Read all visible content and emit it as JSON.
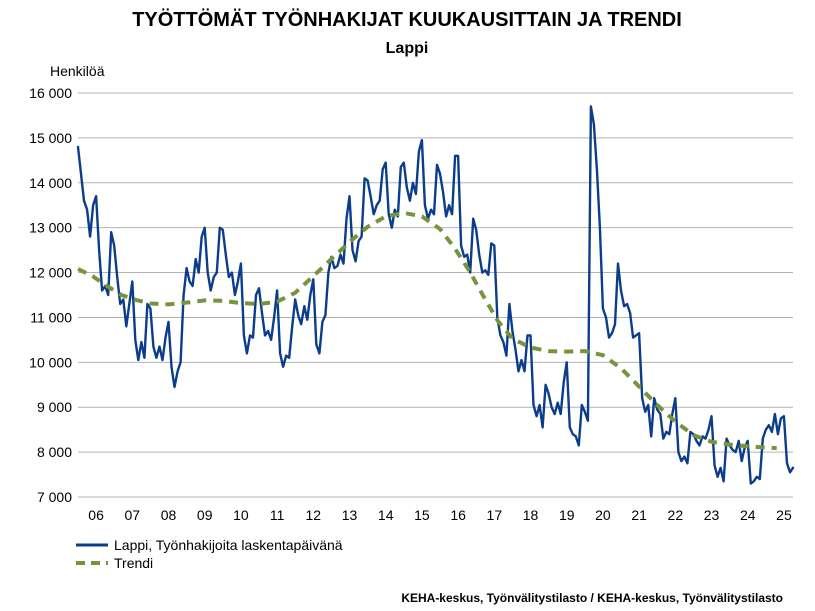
{
  "chart_data": {
    "type": "line",
    "title": "TYÖTTÖMÄT TYÖNHAKIJAT KUUKAUSITTAIN JA TRENDI",
    "subtitle": "Lappi",
    "ylabel": "Henkilöä",
    "xlabel": "",
    "ylim": [
      7000,
      16000
    ],
    "yticks": [
      7000,
      8000,
      9000,
      10000,
      11000,
      12000,
      13000,
      14000,
      15000,
      16000
    ],
    "ytick_labels": [
      "7 000",
      "8 000",
      "9 000",
      "10 000",
      "11 000",
      "12 000",
      "13 000",
      "14 000",
      "15 000",
      "16 000"
    ],
    "x_unit": "year",
    "xlim": [
      2006.0,
      2025.75
    ],
    "xticks": [
      2006,
      2007,
      2008,
      2009,
      2010,
      2011,
      2012,
      2013,
      2014,
      2015,
      2016,
      2017,
      2018,
      2019,
      2020,
      2021,
      2022,
      2023,
      2024,
      2025
    ],
    "xtick_labels": [
      "06",
      "07",
      "08",
      "09",
      "10",
      "11",
      "12",
      "13",
      "14",
      "15",
      "16",
      "17",
      "18",
      "19",
      "20",
      "21",
      "22",
      "23",
      "24",
      "25"
    ],
    "grid": "horizontal",
    "legend_position": "bottom-left",
    "series": [
      {
        "name": "Lappi, Työnhakijoita laskentapäivänä",
        "color": "#0b3d8c",
        "style": "solid",
        "monthly_from": "2006-01",
        "values": [
          14800,
          14200,
          13600,
          13400,
          12800,
          13500,
          13700,
          12500,
          11600,
          11700,
          11500,
          12900,
          12600,
          11900,
          11300,
          11400,
          10800,
          11300,
          11800,
          10500,
          10050,
          10450,
          10100,
          11300,
          11200,
          10350,
          10100,
          10350,
          10050,
          10550,
          10900,
          9900,
          9450,
          9800,
          10000,
          11500,
          12100,
          11800,
          11700,
          12300,
          12000,
          12800,
          13000,
          12000,
          11600,
          11900,
          12000,
          13000,
          12950,
          12400,
          11900,
          12000,
          11500,
          11800,
          12200,
          10600,
          10200,
          10600,
          10550,
          11500,
          11650,
          11100,
          10600,
          10700,
          10500,
          11000,
          11600,
          10200,
          9900,
          10150,
          10100,
          10800,
          11400,
          11050,
          10850,
          11250,
          10950,
          11500,
          11850,
          10400,
          10200,
          10900,
          11050,
          12000,
          12350,
          12100,
          12150,
          12400,
          12200,
          13200,
          13700,
          12500,
          12250,
          12700,
          12800,
          14100,
          14050,
          13700,
          13300,
          13500,
          13600,
          14300,
          14450,
          13300,
          13000,
          13400,
          13250,
          14350,
          14450,
          13900,
          13600,
          14000,
          13750,
          14700,
          14950,
          13500,
          13200,
          13400,
          13300,
          14400,
          14200,
          13800,
          13250,
          13500,
          13300,
          14600,
          14600,
          12600,
          12350,
          12400,
          12000,
          13200,
          12950,
          12400,
          12000,
          12050,
          11950,
          12650,
          12600,
          11000,
          10600,
          10450,
          10150,
          11300,
          10700,
          10300,
          9800,
          10050,
          9800,
          10600,
          10600,
          9050,
          8800,
          9050,
          8550,
          9500,
          9300,
          9000,
          8850,
          9100,
          8850,
          9550,
          10000,
          8550,
          8400,
          8350,
          8150,
          9050,
          8900,
          8700,
          15700,
          15300,
          14300,
          13000,
          11200,
          11000,
          10550,
          10650,
          10850,
          12200,
          11600,
          11250,
          11300,
          11100,
          10550,
          10600,
          10650,
          9200,
          8900,
          9050,
          8350,
          9200,
          8950,
          8850,
          8300,
          8450,
          8400,
          8850,
          9200,
          8000,
          7800,
          7900,
          7750,
          8450,
          8400,
          8250,
          8150,
          8350,
          8300,
          8500,
          8800,
          7700,
          7450,
          7650,
          7350,
          8300,
          8150,
          8050,
          8000,
          8250,
          7800,
          8100,
          8250,
          7300,
          7350,
          7450,
          7400,
          8300,
          8500,
          8600,
          8450,
          8850,
          8400,
          8750,
          8800,
          7750,
          7550,
          7650
        ]
      },
      {
        "name": "Trendi",
        "color": "#77933c",
        "style": "dashed",
        "points": [
          [
            2006.0,
            12080
          ],
          [
            2006.4,
            11920
          ],
          [
            2006.8,
            11700
          ],
          [
            2007.2,
            11500
          ],
          [
            2007.6,
            11390
          ],
          [
            2008.0,
            11310
          ],
          [
            2008.5,
            11290
          ],
          [
            2009.0,
            11330
          ],
          [
            2009.5,
            11380
          ],
          [
            2010.0,
            11370
          ],
          [
            2010.5,
            11320
          ],
          [
            2011.0,
            11300
          ],
          [
            2011.5,
            11350
          ],
          [
            2012.0,
            11550
          ],
          [
            2012.5,
            11920
          ],
          [
            2013.0,
            12300
          ],
          [
            2013.5,
            12680
          ],
          [
            2014.0,
            13020
          ],
          [
            2014.5,
            13250
          ],
          [
            2015.0,
            13330
          ],
          [
            2015.5,
            13250
          ],
          [
            2016.0,
            12970
          ],
          [
            2016.4,
            12550
          ],
          [
            2016.8,
            12050
          ],
          [
            2017.2,
            11470
          ],
          [
            2017.6,
            10920
          ],
          [
            2018.0,
            10530
          ],
          [
            2018.5,
            10330
          ],
          [
            2019.0,
            10250
          ],
          [
            2019.5,
            10240
          ],
          [
            2020.0,
            10250
          ],
          [
            2020.5,
            10160
          ],
          [
            2021.0,
            9870
          ],
          [
            2021.5,
            9460
          ],
          [
            2022.0,
            9050
          ],
          [
            2022.5,
            8680
          ],
          [
            2023.0,
            8380
          ],
          [
            2023.5,
            8230
          ],
          [
            2024.0,
            8170
          ],
          [
            2024.5,
            8130
          ],
          [
            2025.0,
            8100
          ],
          [
            2025.3,
            8090
          ]
        ]
      }
    ],
    "legend": [
      {
        "label": "Lappi, Työnhakijoita laskentapäivänä",
        "color": "#0b3d8c",
        "style": "solid"
      },
      {
        "label": "Trendi",
        "color": "#77933c",
        "style": "dashed"
      }
    ],
    "source": "KEHA-keskus, Työnvälitystilasto / KEHA-keskus, Työnvälitystilasto"
  }
}
